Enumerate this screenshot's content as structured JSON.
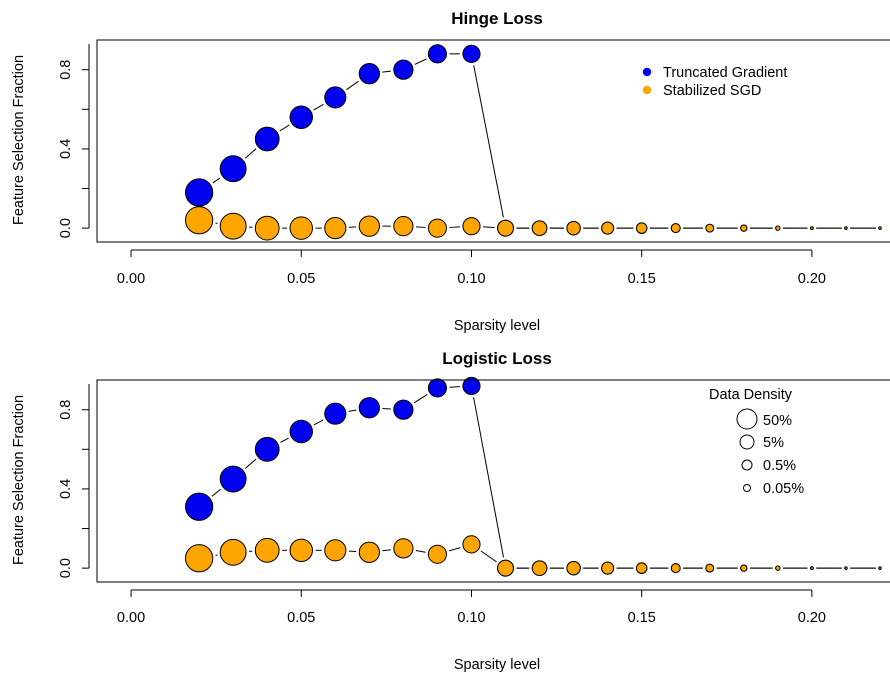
{
  "colors": {
    "truncated": "#0000ee",
    "stabilized": "#ffa500"
  },
  "legend_title": "Data Density",
  "density_legend": [
    {
      "label": "50%",
      "size": 50
    },
    {
      "label": "5%",
      "size": 5
    },
    {
      "label": "0.5%",
      "size": 0.5
    },
    {
      "label": "0.05%",
      "size": 0.05
    }
  ],
  "chart_data": [
    {
      "type": "scatter",
      "title": "Hinge Loss",
      "xlabel": "Sparsity level",
      "ylabel": "Feature Selection Fraction",
      "xlim": [
        -0.01,
        0.225
      ],
      "ylim": [
        -0.07,
        0.95
      ],
      "xticks": [
        0.0,
        0.05,
        0.1,
        0.15,
        0.2
      ],
      "xtick_labels": [
        "0.00",
        "0.05",
        "0.10",
        "0.15",
        "0.20"
      ],
      "yticks": [
        0.0,
        0.4,
        0.8
      ],
      "ytick_labels": [
        "0.0",
        "0.4",
        "0.8"
      ],
      "legend": "top-right",
      "series": [
        {
          "name": "Truncated Gradient",
          "color": "#0000ee",
          "x": [
            0.02,
            0.03,
            0.04,
            0.05,
            0.06,
            0.07,
            0.08,
            0.09,
            0.1,
            0.11,
            0.12,
            0.13,
            0.14,
            0.15,
            0.16,
            0.17,
            0.18,
            0.19,
            0.2,
            0.21,
            0.22
          ],
          "y": [
            0.18,
            0.3,
            0.45,
            0.56,
            0.66,
            0.78,
            0.8,
            0.88,
            0.88,
            0.0,
            0.0,
            0.0,
            0.0,
            0.0,
            0.0,
            0.0,
            0.0,
            0.0,
            0.0,
            0.0,
            0.0
          ]
        },
        {
          "name": "Stabilized SGD",
          "color": "#ffa500",
          "x": [
            0.02,
            0.03,
            0.04,
            0.05,
            0.06,
            0.07,
            0.08,
            0.09,
            0.1,
            0.11,
            0.12,
            0.13,
            0.14,
            0.15,
            0.16,
            0.17,
            0.18,
            0.19,
            0.2,
            0.21,
            0.22
          ],
          "y": [
            0.04,
            0.01,
            0.0,
            0.0,
            0.0,
            0.01,
            0.01,
            0.0,
            0.01,
            0.0,
            0.0,
            0.0,
            0.0,
            0.0,
            0.0,
            0.0,
            0.0,
            0.0,
            0.0,
            0.0,
            0.0
          ]
        }
      ],
      "density": [
        50,
        35,
        20,
        14,
        10,
        8,
        6,
        4.5,
        3.5,
        2.5,
        1.8,
        1.3,
        0.9,
        0.6,
        0.4,
        0.3,
        0.2,
        0.12,
        0.08,
        0.05,
        0.03
      ]
    },
    {
      "type": "scatter",
      "title": "Logistic Loss",
      "xlabel": "Sparsity level",
      "ylabel": "Feature Selection Fraction",
      "xlim": [
        -0.01,
        0.225
      ],
      "ylim": [
        -0.07,
        0.95
      ],
      "xticks": [
        0.0,
        0.05,
        0.1,
        0.15,
        0.2
      ],
      "xtick_labels": [
        "0.00",
        "0.05",
        "0.10",
        "0.15",
        "0.20"
      ],
      "yticks": [
        0.0,
        0.4,
        0.8
      ],
      "ytick_labels": [
        "0.0",
        "0.4",
        "0.8"
      ],
      "legend": "top-right",
      "series": [
        {
          "name": "Truncated Gradient",
          "color": "#0000ee",
          "x": [
            0.02,
            0.03,
            0.04,
            0.05,
            0.06,
            0.07,
            0.08,
            0.09,
            0.1,
            0.11,
            0.12,
            0.13,
            0.14,
            0.15,
            0.16,
            0.17,
            0.18,
            0.19,
            0.2,
            0.21,
            0.22
          ],
          "y": [
            0.31,
            0.45,
            0.6,
            0.69,
            0.78,
            0.81,
            0.8,
            0.91,
            0.92,
            0.0,
            0.0,
            0.0,
            0.0,
            0.0,
            0.0,
            0.0,
            0.0,
            0.0,
            0.0,
            0.0,
            0.0
          ]
        },
        {
          "name": "Stabilized SGD",
          "color": "#ffa500",
          "x": [
            0.02,
            0.03,
            0.04,
            0.05,
            0.06,
            0.07,
            0.08,
            0.09,
            0.1,
            0.11,
            0.12,
            0.13,
            0.14,
            0.15,
            0.16,
            0.17,
            0.18,
            0.19,
            0.2,
            0.21,
            0.22
          ],
          "y": [
            0.05,
            0.08,
            0.09,
            0.09,
            0.09,
            0.08,
            0.1,
            0.07,
            0.12,
            0.0,
            0.0,
            0.0,
            0.0,
            0.0,
            0.0,
            0.0,
            0.0,
            0.0,
            0.0,
            0.0,
            0.0
          ]
        }
      ],
      "density": [
        50,
        35,
        20,
        14,
        10,
        8,
        6,
        4.5,
        3.5,
        2.5,
        1.8,
        1.3,
        0.9,
        0.6,
        0.4,
        0.3,
        0.2,
        0.12,
        0.08,
        0.05,
        0.03
      ]
    }
  ]
}
